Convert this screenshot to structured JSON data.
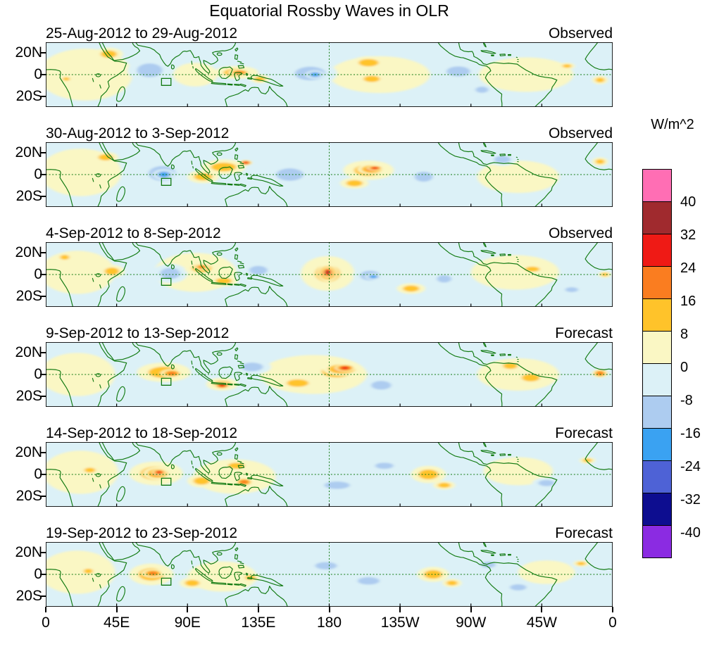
{
  "chart_data": {
    "type": "heatmap",
    "title": "Equatorial Rossby Waves in OLR",
    "units_label": "W/m^2",
    "x_ticks": [
      "0",
      "45E",
      "90E",
      "135E",
      "180",
      "135W",
      "90W",
      "45W",
      "0"
    ],
    "y_ticks": [
      "20N",
      "0",
      "20S"
    ],
    "lon_range": [
      0,
      360
    ],
    "lat_range": [
      -30,
      30
    ],
    "grid": {
      "equator_dashed": true,
      "dateline_dashed": true
    },
    "map": {
      "coastline_color": "#117a11",
      "frame_color": "#000000",
      "index_region_box": {
        "lon_min": 73.5,
        "lon_max": 79.5,
        "lat_min": -10,
        "lat_max": -3.5
      }
    },
    "colorbar": {
      "levels": [
        40,
        32,
        24,
        16,
        8,
        0,
        -8,
        -16,
        -24,
        -32,
        -40
      ],
      "colors_top_to_bottom": [
        "#FF6EB4",
        "#A02A2E",
        "#EF1A15",
        "#FA7D20",
        "#FFC32A",
        "#FAF7C4",
        "#DCF1F7",
        "#ADCCF0",
        "#3AA2F2",
        "#4E62D6",
        "#0D0D90",
        "#8B2BE2"
      ]
    },
    "anomaly_format": [
      "lon_deg_east",
      "lat_deg_north",
      "rx_deg",
      "ry_deg",
      "peak_W_per_m2"
    ],
    "panels": [
      {
        "title": "25-Aug-2012 to 29-Aug-2012",
        "mode": "Observed",
        "anomalies": [
          [
            25,
            0,
            30,
            24,
            4
          ],
          [
            95,
            0,
            14,
            11,
            4
          ],
          [
            212,
            0,
            32,
            17,
            4
          ],
          [
            305,
            0,
            30,
            16,
            4
          ],
          [
            40,
            19,
            9,
            6,
            10
          ],
          [
            13,
            -4,
            4,
            3,
            14
          ],
          [
            66,
            4,
            14,
            11,
            -10
          ],
          [
            121,
            2,
            14,
            6,
            12
          ],
          [
            123,
            2,
            7,
            3,
            18
          ],
          [
            136,
            -4,
            6,
            4,
            12
          ],
          [
            168,
            1,
            17,
            11,
            -12
          ],
          [
            171,
            0,
            6,
            4,
            -18
          ],
          [
            205,
            11,
            11,
            6,
            12
          ],
          [
            207,
            -4,
            9,
            5,
            10
          ],
          [
            262,
            3,
            13,
            8,
            -10
          ],
          [
            277,
            -14,
            7,
            5,
            -10
          ],
          [
            331,
            8,
            5,
            3,
            14
          ],
          [
            352,
            -5,
            5,
            4,
            10
          ]
        ]
      },
      {
        "title": "30-Aug-2012 to 3-Sep-2012",
        "mode": "Observed",
        "anomalies": [
          [
            22,
            2,
            26,
            22,
            4
          ],
          [
            300,
            -2,
            26,
            15,
            4
          ],
          [
            38,
            16,
            8,
            5,
            10
          ],
          [
            74,
            1,
            15,
            12,
            -12
          ],
          [
            75,
            0,
            7,
            5,
            -18
          ],
          [
            100,
            -2,
            10,
            6,
            12
          ],
          [
            113,
            7,
            14,
            7,
            14
          ],
          [
            127,
            11,
            4,
            2.5,
            26
          ],
          [
            155,
            0,
            15,
            10,
            -12
          ],
          [
            205,
            4,
            16,
            9,
            12
          ],
          [
            207,
            5,
            9,
            5,
            20
          ],
          [
            209,
            6,
            5,
            2.5,
            26
          ],
          [
            196,
            -8,
            9,
            5,
            12
          ],
          [
            240,
            -2,
            10,
            8,
            -12
          ],
          [
            290,
            14,
            9,
            6,
            -10
          ],
          [
            352,
            12,
            5,
            4,
            10
          ]
        ]
      },
      {
        "title": "4-Sep-2012 to 8-Sep-2012",
        "mode": "Observed",
        "anomalies": [
          [
            20,
            2,
            24,
            20,
            4
          ],
          [
            95,
            2,
            26,
            18,
            4
          ],
          [
            298,
            2,
            28,
            16,
            4
          ],
          [
            42,
            3,
            8,
            6,
            12
          ],
          [
            12,
            16,
            5,
            4,
            10
          ],
          [
            79,
            1,
            11,
            9,
            -14
          ],
          [
            99,
            6,
            11,
            7,
            14
          ],
          [
            99,
            7,
            5,
            3,
            18
          ],
          [
            113,
            -6,
            9,
            5,
            12
          ],
          [
            135,
            4,
            10,
            7,
            -12
          ],
          [
            179,
            1,
            17,
            16,
            12
          ],
          [
            179,
            1,
            11,
            11,
            20
          ],
          [
            179,
            1.5,
            6.5,
            8,
            28
          ],
          [
            179,
            2,
            3.5,
            5,
            34
          ],
          [
            206,
            -1,
            11,
            8,
            -14
          ],
          [
            208,
            -2,
            5,
            3,
            -20
          ],
          [
            232,
            -13,
            9,
            5,
            14
          ],
          [
            253,
            -4,
            8,
            6,
            -10
          ],
          [
            309,
            5,
            8,
            4,
            12
          ],
          [
            334,
            -14,
            7,
            4,
            -10
          ],
          [
            355,
            0,
            4,
            3,
            14
          ]
        ]
      },
      {
        "title": "9-Sep-2012 to 13-Sep-2012",
        "mode": "Forecast",
        "anomalies": [
          [
            20,
            0,
            24,
            20,
            4
          ],
          [
            170,
            0,
            34,
            18,
            4
          ],
          [
            300,
            0,
            26,
            15,
            4
          ],
          [
            75,
            2,
            17,
            9,
            12
          ],
          [
            80,
            1,
            7,
            4,
            16
          ],
          [
            112,
            -9,
            10,
            6,
            14
          ],
          [
            112,
            -10,
            5,
            3.5,
            26
          ],
          [
            131,
            7,
            12,
            7,
            -12
          ],
          [
            160,
            -8,
            12,
            6,
            14
          ],
          [
            185,
            3,
            17,
            10,
            12
          ],
          [
            188,
            5,
            12,
            6,
            20
          ],
          [
            190,
            6,
            6.5,
            3.5,
            26
          ],
          [
            213,
            -10,
            11,
            7,
            -12
          ],
          [
            295,
            8,
            8,
            5,
            12
          ],
          [
            308,
            -3,
            10,
            6,
            10
          ],
          [
            352,
            1,
            5,
            4,
            16
          ]
        ]
      },
      {
        "title": "14-Sep-2012 to 18-Sep-2012",
        "mode": "Forecast",
        "anomalies": [
          [
            22,
            2,
            24,
            20,
            4
          ],
          [
            120,
            -2,
            26,
            16,
            4
          ],
          [
            300,
            3,
            22,
            13,
            4
          ],
          [
            28,
            4,
            6,
            4,
            12
          ],
          [
            70,
            1,
            17,
            11,
            14
          ],
          [
            71,
            1,
            9,
            6,
            20
          ],
          [
            72,
            2,
            4.5,
            3,
            28
          ],
          [
            99,
            -6,
            9,
            6,
            14
          ],
          [
            121,
            8,
            9,
            5,
            12
          ],
          [
            126,
            -7,
            6,
            4,
            20
          ],
          [
            185,
            -10,
            14,
            6,
            -10
          ],
          [
            215,
            8,
            10,
            5,
            -10
          ],
          [
            243,
            0,
            11,
            8,
            14
          ],
          [
            253,
            -10,
            7,
            4,
            12
          ],
          [
            318,
            -8,
            9,
            5,
            -10
          ],
          [
            344,
            13,
            5,
            3,
            10
          ]
        ]
      },
      {
        "title": "19-Sep-2012 to 23-Sep-2012",
        "mode": "Forecast",
        "anomalies": [
          [
            20,
            2,
            24,
            20,
            4
          ],
          [
            112,
            -2,
            22,
            14,
            4
          ],
          [
            318,
            2,
            18,
            11,
            4
          ],
          [
            27,
            3,
            5,
            4,
            10
          ],
          [
            67,
            0,
            14,
            10,
            14
          ],
          [
            68,
            1,
            7,
            4,
            22
          ],
          [
            93,
            -8,
            8,
            5,
            12
          ],
          [
            130,
            -3,
            6,
            4,
            10
          ],
          [
            178,
            8,
            12,
            6,
            -10
          ],
          [
            205,
            -6,
            12,
            6,
            -10
          ],
          [
            246,
            0,
            10,
            7,
            12
          ],
          [
            258,
            -8,
            6,
            4,
            10
          ],
          [
            281,
            9,
            8,
            5,
            -10
          ],
          [
            300,
            -12,
            9,
            5,
            -10
          ],
          [
            340,
            10,
            5,
            3,
            10
          ]
        ]
      }
    ]
  }
}
